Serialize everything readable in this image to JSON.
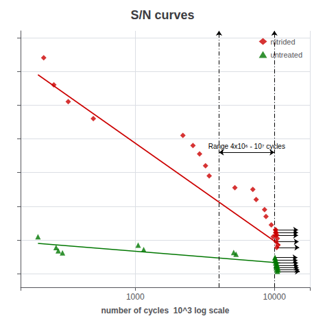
{
  "chart_data": {
    "type": "scatter",
    "title": "S/N curves",
    "xlabel": "number of cycles  10^3 log scale",
    "log": "x",
    "xlim": [
      150,
      18000
    ],
    "xticks": [
      1000,
      10000
    ],
    "ylim": [
      160,
      920
    ],
    "yticks": [
      200,
      300,
      400,
      500,
      600,
      700,
      800,
      900
    ],
    "tick_labels": "x",
    "grid": true,
    "legend": "upper right",
    "series": [
      {
        "name": "nitrided",
        "color": "#cc0000",
        "marker": "diamond",
        "x": [
          220,
          260,
          330,
          500,
          2200,
          2600,
          2900,
          3200,
          3400,
          5200,
          7000,
          7400,
          8500,
          8700,
          9500,
          9800,
          10200,
          10300,
          10400,
          10500,
          10600
        ],
        "values": [
          840,
          760,
          710,
          660,
          610,
          580,
          555,
          520,
          490,
          455,
          450,
          420,
          390,
          370,
          345,
          310,
          330,
          322,
          315,
          305,
          285
        ],
        "trend_x": [
          200,
          11000
        ],
        "trend_values": [
          790,
          285
        ],
        "runouts": [
          [
            10200,
            330
          ],
          [
            10200,
            322
          ],
          [
            10200,
            314
          ],
          [
            10300,
            295
          ],
          [
            10400,
            278
          ]
        ]
      },
      {
        "name": "untreated",
        "color": "#007700",
        "marker": "triangle",
        "x": [
          200,
          270,
          280,
          300,
          1050,
          1150,
          5100,
          5300,
          10100,
          10200,
          10300,
          10400,
          10500,
          10600,
          10650
        ],
        "values": [
          310,
          278,
          268,
          262,
          285,
          272,
          263,
          258,
          248,
          242,
          236,
          230,
          224,
          218,
          212
        ],
        "trend_x": [
          200,
          11000
        ],
        "trend_values": [
          290,
          232
        ],
        "runouts": [
          [
            10100,
            248
          ],
          [
            10100,
            240
          ],
          [
            10200,
            232
          ],
          [
            10250,
            224
          ],
          [
            10300,
            218
          ],
          [
            10400,
            212
          ],
          [
            10500,
            207
          ]
        ]
      }
    ],
    "vlines": [
      4000,
      10000
    ],
    "annotations": [
      {
        "text": "Range 4x10⁶ - 10⁷ cycles",
        "x_from": 4000,
        "x_to": 10000,
        "y": 560
      }
    ]
  }
}
